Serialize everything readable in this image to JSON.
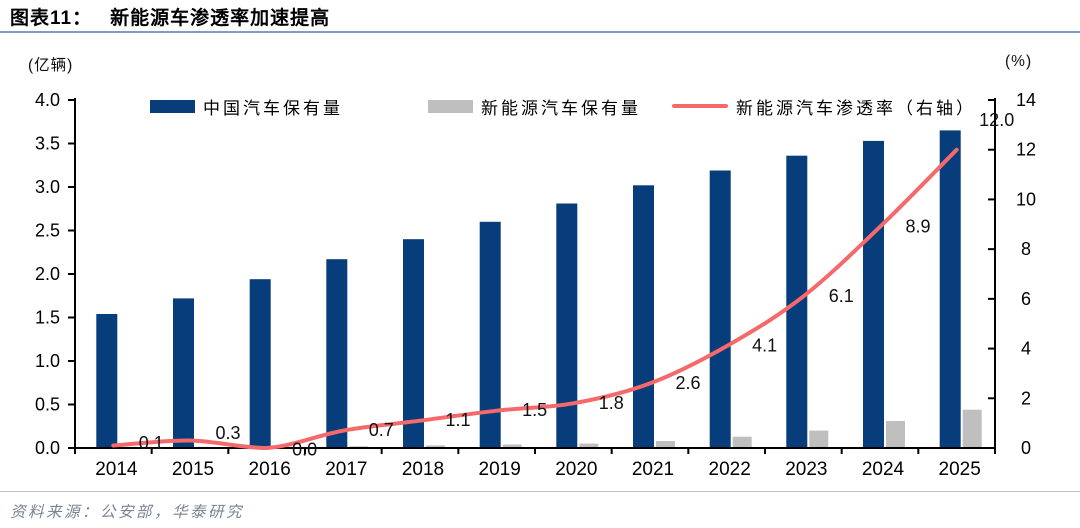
{
  "header": {
    "label": "图表11：",
    "title": "新能源车渗透率加速提高"
  },
  "footer": {
    "source": "资料来源：公安部，华泰研究"
  },
  "chart_data": {
    "type": "bar+line",
    "title": "新能源车渗透率加速提高",
    "categories": [
      "2014",
      "2015",
      "2016",
      "2017",
      "2018",
      "2019",
      "2020",
      "2021",
      "2022",
      "2023",
      "2024",
      "2025"
    ],
    "series": [
      {
        "name": "中国汽车保有量",
        "type": "bar",
        "axis": "left",
        "color": "#063D7A",
        "values": [
          1.54,
          1.72,
          1.94,
          2.17,
          2.4,
          2.6,
          2.81,
          3.02,
          3.19,
          3.36,
          3.53,
          3.65
        ]
      },
      {
        "name": "新能源汽车保有量",
        "type": "bar",
        "axis": "left",
        "color": "#BFBFBF",
        "values": [
          0.01,
          0.01,
          0.01,
          0.02,
          0.03,
          0.04,
          0.05,
          0.08,
          0.13,
          0.2,
          0.31,
          0.44
        ]
      },
      {
        "name": "新能源汽车渗透率（右轴）",
        "type": "line",
        "axis": "right",
        "color": "#F5696B",
        "values": [
          0.1,
          0.3,
          0.0,
          0.7,
          1.1,
          1.5,
          1.8,
          2.6,
          4.1,
          6.1,
          8.9,
          12.0
        ],
        "point_labels": [
          "0.1",
          "0.3",
          "0.0",
          "0.7",
          "1.1",
          "1.5",
          "1.8",
          "2.6",
          "4.1",
          "6.1",
          "8.9",
          "12.0"
        ]
      }
    ],
    "left_axis": {
      "title": "(亿辆)",
      "min": 0,
      "max": 4,
      "step": 0.5,
      "ticks": [
        "0.0",
        "0.5",
        "1.0",
        "1.5",
        "2.0",
        "2.5",
        "3.0",
        "3.5",
        "4.0"
      ]
    },
    "right_axis": {
      "title": "(%)",
      "min": 0,
      "max": 14,
      "step": 2,
      "ticks": [
        "0",
        "2",
        "4",
        "6",
        "8",
        "10",
        "12",
        "14"
      ]
    },
    "grid": false,
    "legend_position": "top"
  }
}
